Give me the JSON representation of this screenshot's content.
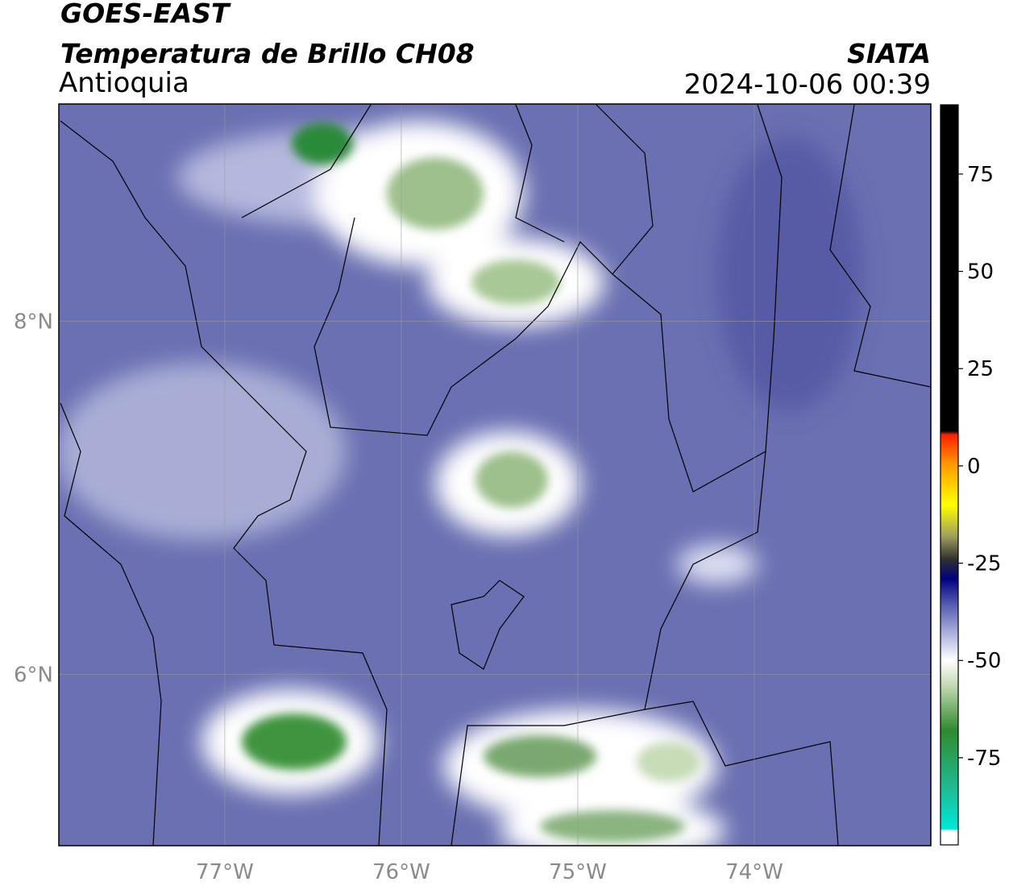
{
  "header": {
    "title": "GOES-EAST",
    "subtitle": "Temperatura de Brillo CH08",
    "region": "Antioquia",
    "source": "SIATA",
    "timestamp": "2024-10-06 00:39"
  },
  "map": {
    "xlim": [
      -77.94,
      -73.0
    ],
    "ylim": [
      5.03,
      9.23
    ],
    "xticks": [
      {
        "value": -77,
        "label": "77°W"
      },
      {
        "value": -76,
        "label": "76°W"
      },
      {
        "value": -75,
        "label": "75°W"
      },
      {
        "value": -74,
        "label": "74°W"
      }
    ],
    "yticks": [
      {
        "value": 8,
        "label": "8°N"
      },
      {
        "value": 6,
        "label": "6°N"
      }
    ],
    "grid": true,
    "background": "#6b70b2"
  },
  "colorbar": {
    "lim": [
      -97.4,
      92.8
    ],
    "ticks": [
      75,
      50,
      25,
      0,
      -25,
      -50,
      -75
    ],
    "stops": [
      {
        "value": -97.4,
        "color": "#ffffff"
      },
      {
        "value": -93.5,
        "color": "#ffffff"
      },
      {
        "value": -93.4,
        "color": "#00e8d8"
      },
      {
        "value": -82,
        "color": "#20b890"
      },
      {
        "value": -68,
        "color": "#2e8b2e"
      },
      {
        "value": -56,
        "color": "#c8dcb8"
      },
      {
        "value": -50,
        "color": "#ffffff"
      },
      {
        "value": -44,
        "color": "#b8bce0"
      },
      {
        "value": -36,
        "color": "#5a60b0"
      },
      {
        "value": -29,
        "color": "#000080"
      },
      {
        "value": -24,
        "color": "#303030"
      },
      {
        "value": -18,
        "color": "#a0a060"
      },
      {
        "value": -10,
        "color": "#ffff00"
      },
      {
        "value": 0,
        "color": "#ffa000"
      },
      {
        "value": 8,
        "color": "#ff2000"
      },
      {
        "value": 9,
        "color": "#000000"
      },
      {
        "value": 92.8,
        "color": "#000000"
      }
    ]
  }
}
